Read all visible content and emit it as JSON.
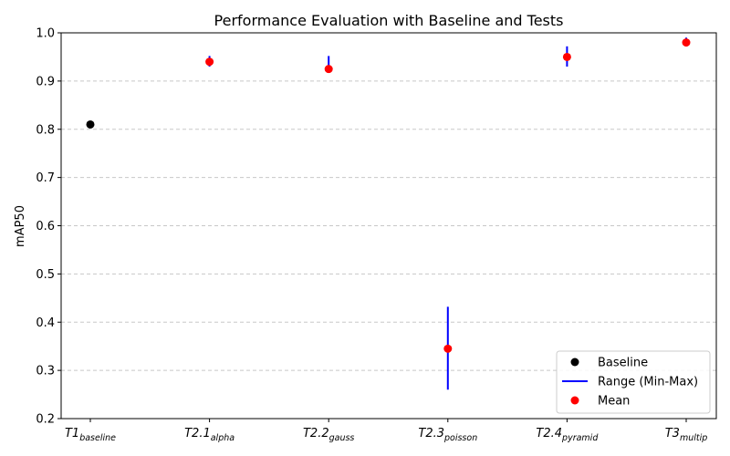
{
  "chart_data": {
    "type": "scatter",
    "title": "Performance Evaluation with Baseline and Tests",
    "xlabel": "",
    "ylabel": "mAP50",
    "ylim": [
      0.2,
      1.0
    ],
    "yticks": [
      "0.2",
      "0.3",
      "0.4",
      "0.5",
      "0.6",
      "0.7",
      "0.8",
      "0.9",
      "1.0"
    ],
    "grid": "horizontal dashed",
    "legend_position": "bottom-right",
    "categories": [
      {
        "main": "T1",
        "sub": "baseline"
      },
      {
        "main": "T2.1",
        "sub": "alpha"
      },
      {
        "main": "T2.2",
        "sub": "gauss"
      },
      {
        "main": "T2.3",
        "sub": "poisson"
      },
      {
        "main": "T2.4",
        "sub": "pyramid"
      },
      {
        "main": "T3",
        "sub": "multip"
      }
    ],
    "series": [
      {
        "name": "Baseline",
        "kind": "point",
        "color": "#000000",
        "points": [
          {
            "category": 0,
            "value": 0.81
          }
        ]
      },
      {
        "name": "Range (Min-Max)",
        "kind": "range",
        "color": "#0000ff",
        "ranges": [
          {
            "category": 1,
            "min": 0.93,
            "max": 0.952
          },
          {
            "category": 2,
            "min": 0.92,
            "max": 0.952
          },
          {
            "category": 3,
            "min": 0.26,
            "max": 0.432
          },
          {
            "category": 4,
            "min": 0.93,
            "max": 0.972
          },
          {
            "category": 5,
            "min": 0.972,
            "max": 0.99
          }
        ]
      },
      {
        "name": "Mean",
        "kind": "point",
        "color": "#ff0000",
        "points": [
          {
            "category": 1,
            "value": 0.94
          },
          {
            "category": 2,
            "value": 0.925
          },
          {
            "category": 3,
            "value": 0.345
          },
          {
            "category": 4,
            "value": 0.95
          },
          {
            "category": 5,
            "value": 0.98
          }
        ]
      }
    ]
  }
}
